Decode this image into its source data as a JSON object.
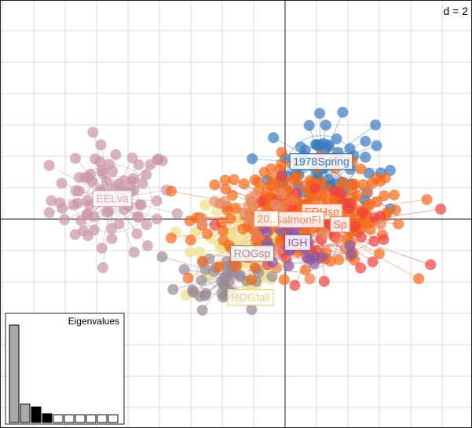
{
  "chart_data": {
    "type": "scatter",
    "scale_label": "d = 2",
    "grid": true,
    "xlim": [
      -18,
      12
    ],
    "ylim": [
      -13.5,
      13.7
    ],
    "groups": [
      {
        "name": "1978Spring",
        "color": "#3a7bbf",
        "center": [
          2.3,
          3.5
        ],
        "spread": [
          2.6,
          2.2
        ],
        "n": 70,
        "label_color": "#3a7bbf"
      },
      {
        "name": "EELva",
        "color": "#c995a8",
        "center": [
          -11.0,
          1.3
        ],
        "spread": [
          3.0,
          2.6
        ],
        "n": 80,
        "label_color": "#d4a7b8"
      },
      {
        "name": "ROGfall",
        "color": "#ede08a",
        "center": [
          -3.1,
          -2.5
        ],
        "spread": [
          2.6,
          2.4
        ],
        "n": 60,
        "label_color": "#e8d47a"
      },
      {
        "name": "ROGsp",
        "color": "#9a8a98",
        "center": [
          -3.6,
          -3.6
        ],
        "spread": [
          2.5,
          1.6
        ],
        "n": 45,
        "label_color": "#9a8aa0"
      },
      {
        "name": "FRHsp",
        "color": "#f46a1a",
        "center": [
          1.2,
          0.2
        ],
        "spread": [
          5.0,
          2.4
        ],
        "n": 260,
        "label_color": "#f07a3a"
      },
      {
        "name": "Sp",
        "color": "#ee4040",
        "center": [
          2.3,
          -0.5
        ],
        "spread": [
          4.5,
          2.2
        ],
        "n": 40,
        "label_color": "#ee7060"
      },
      {
        "name": "SalmonFl",
        "color": "#f07a4a",
        "center": [
          0.0,
          -0.9
        ],
        "spread": [
          4.0,
          2.0
        ],
        "n": 30,
        "label_color": "#f08a5a"
      },
      {
        "name": "20..",
        "color": "#e8906a",
        "center": [
          -1.2,
          0.0
        ],
        "spread": [
          3.0,
          1.5
        ],
        "n": 20,
        "label_color": "#e8906a"
      },
      {
        "name": "IGH",
        "color": "#8a5aa6",
        "center": [
          0.8,
          -1.7
        ],
        "spread": [
          3.0,
          2.0
        ],
        "n": 30,
        "label_color": "#8a5aa6"
      }
    ],
    "eigenvalues": {
      "title": "Eigenvalues",
      "values": [
        100,
        19,
        16,
        9,
        8,
        8,
        8,
        8,
        8,
        8
      ],
      "shade": [
        "gray",
        "gray",
        "black",
        "black",
        "white",
        "white",
        "white",
        "white",
        "white",
        "white"
      ]
    }
  }
}
